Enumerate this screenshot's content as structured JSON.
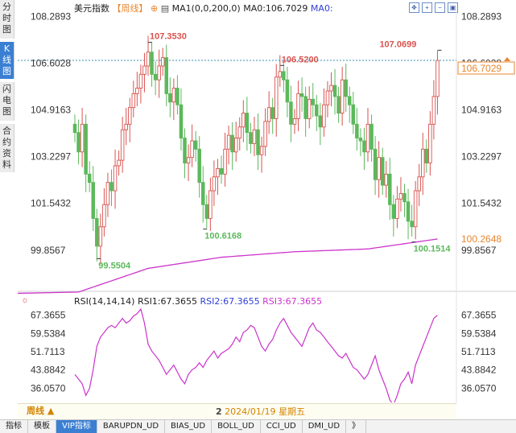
{
  "left_tabs": [
    {
      "label": "分时图",
      "active": false
    },
    {
      "label": "K线图",
      "active": true
    },
    {
      "label": "闪电图",
      "active": false
    },
    {
      "label": "合约资料",
      "active": false
    }
  ],
  "header": {
    "instrument": "美元指数",
    "period": "【周线】",
    "ma_params": "MA1(0,0,200,0)",
    "ma0_label": "MA0:106.7029",
    "ma0_short": "MA0:"
  },
  "price_axis": {
    "ticks": [
      "108.2893",
      "106.6028",
      "104.9163",
      "103.2297",
      "101.5432",
      "99.8567"
    ],
    "tick_values": [
      108.2893,
      106.6028,
      104.9163,
      103.2297,
      101.5432,
      99.8567
    ],
    "last_price": "106.7029",
    "last_price_value": 106.7029,
    "ma_value": "100.2648",
    "ma_value_num": 100.2648
  },
  "annotations": [
    {
      "label": "107.3530",
      "value": 107.353,
      "kind": "high",
      "index": 20
    },
    {
      "label": "106.5200",
      "value": 106.52,
      "kind": "high",
      "index": 56
    },
    {
      "label": "107.0699",
      "value": 107.0699,
      "kind": "high",
      "index": 99
    },
    {
      "label": "99.5504",
      "value": 99.5504,
      "kind": "low",
      "index": 6
    },
    {
      "label": "100.6168",
      "value": 100.6168,
      "kind": "low",
      "index": 35
    },
    {
      "label": "100.1514",
      "value": 100.1514,
      "kind": "low",
      "index": 92
    }
  ],
  "rsi": {
    "params": "RSI(14,14,14)",
    "rsi1": "RSI1:67.3655",
    "rsi2": "RSI2:67.3655",
    "rsi3": "RSI3:67.3655",
    "ticks": [
      "67.3655",
      "59.5384",
      "51.7113",
      "43.8842",
      "36.0570"
    ],
    "tick_values": [
      67.3655,
      59.5384,
      51.7113,
      43.8842,
      36.057
    ]
  },
  "footer": {
    "period_button": "周线 ▲",
    "date_index": "2",
    "date": "2024/01/19",
    "weekday": "星期五"
  },
  "bottom_tabs": [
    {
      "label": "指标",
      "active": false
    },
    {
      "label": "模板",
      "active": false
    },
    {
      "label": "VIP指标",
      "active": true
    },
    {
      "label": "BARUPDN_UD",
      "active": false
    },
    {
      "label": "BIAS_UD",
      "active": false
    },
    {
      "label": "BOLL_UD",
      "active": false
    },
    {
      "label": "CCI_UD",
      "active": false
    },
    {
      "label": "DMI_UD",
      "active": false
    },
    {
      "label": "》",
      "active": false
    }
  ],
  "colors": {
    "up": "#d9534f",
    "down": "#5cb85c",
    "ma": "#cc33cc",
    "rsi": "#cc33cc",
    "annotation_high": "#d9534f",
    "annotation_low": "#5cb85c",
    "last_price": "#e8862e"
  },
  "chart_data": {
    "type": "candlestick",
    "ohlc_close_values": [
      104.1,
      103.4,
      104.4,
      102.6,
      102.3,
      101.0,
      100.0,
      100.7,
      101.5,
      102.3,
      102.0,
      102.9,
      103.1,
      104.2,
      104.4,
      105.0,
      105.5,
      105.7,
      106.2,
      106.5,
      107.0,
      106.2,
      106.0,
      106.5,
      106.8,
      105.5,
      105.2,
      105.7,
      105.1,
      103.9,
      103.0,
      103.2,
      103.8,
      103.5,
      102.3,
      101.5,
      101.0,
      102.0,
      102.5,
      102.8,
      102.6,
      103.5,
      104.0,
      103.4,
      103.9,
      104.3,
      104.8,
      104.1,
      103.7,
      104.2,
      103.3,
      103.6,
      104.5,
      105.0,
      104.6,
      106.1,
      106.3,
      106.0,
      105.2,
      104.4,
      104.6,
      105.5,
      105.4,
      104.6,
      105.3,
      105.1,
      104.7,
      104.3,
      105.1,
      105.6,
      105.8,
      105.4,
      104.8,
      106.0,
      105.4,
      105.1,
      104.4,
      103.9,
      103.8,
      103.4,
      104.4,
      103.5,
      102.4,
      103.2,
      102.2,
      102.6,
      101.5,
      101.0,
      101.7,
      101.9,
      101.6,
      100.9,
      100.7,
      102.0,
      102.5,
      103.5,
      103.0,
      104.4,
      105.4,
      106.7
    ],
    "ma_x": [
      0,
      20,
      40,
      60,
      80,
      99
    ],
    "ma_y": [
      98.3,
      99.2,
      99.6,
      99.8,
      99.9,
      100.26
    ],
    "ylim": [
      99.3,
      108.3
    ],
    "rsi_values": [
      42,
      40,
      38,
      33,
      36,
      44,
      54,
      58,
      60,
      62,
      63,
      62,
      64,
      66,
      64,
      65,
      67,
      68,
      70,
      64,
      55,
      52,
      50,
      48,
      45,
      42,
      44,
      46,
      43,
      40,
      38,
      42,
      44,
      45,
      47,
      45,
      48,
      50,
      52,
      49,
      51,
      52,
      53,
      55,
      58,
      56,
      60,
      61,
      63,
      62,
      58,
      54,
      52,
      55,
      57,
      61,
      64,
      66,
      63,
      60,
      58,
      56,
      54,
      58,
      62,
      64,
      61,
      60,
      58,
      56,
      54,
      52,
      50,
      49,
      51,
      48,
      45,
      44,
      42,
      40,
      42,
      46,
      50,
      44,
      40,
      36,
      31,
      29,
      33,
      38,
      40,
      43,
      38,
      46,
      50,
      54,
      58,
      62,
      66,
      67.37
    ],
    "rsi_ylim": [
      30,
      70
    ],
    "x_axis": {
      "date": "2024/01/19"
    },
    "series": [
      {
        "name": "MA0",
        "last": 106.7029
      },
      {
        "name": "MA1",
        "last": 100.2648
      },
      {
        "name": "RSI1",
        "last": 67.3655
      },
      {
        "name": "RSI2",
        "last": 67.3655
      },
      {
        "name": "RSI3",
        "last": 67.3655
      }
    ]
  }
}
